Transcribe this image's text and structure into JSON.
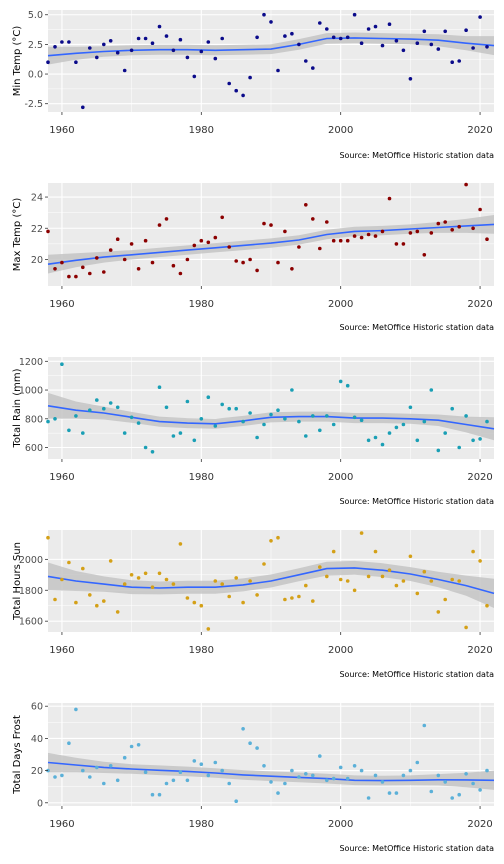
{
  "source_caption": "Source: MetOffice Historic station data",
  "colors": {
    "panel_bg": "#ebebeb",
    "grid": "#ffffff",
    "trend_line": "#3366ff",
    "ribbon": "#c4c4c4"
  },
  "chart_data": [
    {
      "type": "scatter",
      "ylabel": "Min Temp (°C)",
      "ylim": [
        -3.2,
        5.4
      ],
      "yticks": [
        -2.5,
        0.0,
        2.5,
        5.0
      ],
      "ytick_labels": [
        "-2.5",
        "0.0",
        "2.5",
        "5.0"
      ],
      "xlim": [
        1958,
        2022
      ],
      "xticks": [
        1960,
        1980,
        2000,
        2020
      ],
      "xtick_labels": [
        "1960",
        "1980",
        "2000",
        "2020"
      ],
      "point_color": "#0a0a8a",
      "x": [
        1958,
        1959,
        1960,
        1961,
        1962,
        1963,
        1964,
        1965,
        1966,
        1967,
        1968,
        1969,
        1970,
        1971,
        1972,
        1973,
        1974,
        1975,
        1976,
        1977,
        1978,
        1979,
        1980,
        1981,
        1982,
        1983,
        1984,
        1985,
        1986,
        1987,
        1988,
        1989,
        1990,
        1991,
        1992,
        1993,
        1994,
        1995,
        1996,
        1997,
        1998,
        1999,
        2000,
        2001,
        2002,
        2003,
        2004,
        2005,
        2006,
        2007,
        2008,
        2009,
        2010,
        2011,
        2012,
        2013,
        2014,
        2015,
        2016,
        2017,
        2018,
        2019,
        2020,
        2021
      ],
      "y": [
        1.0,
        2.3,
        2.7,
        2.7,
        1.0,
        -2.8,
        2.2,
        1.4,
        2.5,
        2.8,
        1.8,
        0.3,
        2.0,
        3.0,
        3.0,
        2.6,
        4.0,
        3.2,
        2.0,
        2.9,
        1.4,
        -0.2,
        1.9,
        2.7,
        1.3,
        3.0,
        -0.8,
        -1.4,
        -1.8,
        -0.3,
        3.1,
        5.0,
        4.4,
        0.3,
        3.2,
        3.4,
        2.5,
        1.1,
        0.5,
        4.3,
        3.8,
        3.1,
        3.0,
        3.1,
        5.0,
        2.6,
        3.8,
        4.0,
        2.4,
        4.2,
        2.8,
        2.0,
        -0.4,
        2.6,
        3.6,
        2.5,
        2.1,
        3.6,
        1.0,
        1.1,
        3.7,
        2.2,
        4.8,
        2.3
      ],
      "trend_x": [
        1958,
        1962,
        1966,
        1970,
        1974,
        1978,
        1982,
        1986,
        1990,
        1994,
        1998,
        2002,
        2006,
        2010,
        2014,
        2018,
        2022
      ],
      "trend_y": [
        1.55,
        1.75,
        1.9,
        2.0,
        2.05,
        2.05,
        2.0,
        2.05,
        2.1,
        2.5,
        3.0,
        3.05,
        3.0,
        2.95,
        2.85,
        2.6,
        2.4
      ],
      "band_halfwidth": [
        0.75,
        0.55,
        0.45,
        0.42,
        0.42,
        0.42,
        0.42,
        0.42,
        0.42,
        0.45,
        0.45,
        0.45,
        0.45,
        0.45,
        0.5,
        0.6,
        0.8
      ]
    },
    {
      "type": "scatter",
      "ylabel": "Max Temp (°C)",
      "ylim": [
        18.3,
        24.9
      ],
      "yticks": [
        20,
        22,
        24
      ],
      "ytick_labels": [
        "20",
        "22",
        "24"
      ],
      "xlim": [
        1958,
        2022
      ],
      "xticks": [
        1960,
        1980,
        2000,
        2020
      ],
      "xtick_labels": [
        "1960",
        "1980",
        "2000",
        "2020"
      ],
      "point_color": "#8b0000",
      "x": [
        1958,
        1959,
        1960,
        1961,
        1962,
        1963,
        1964,
        1965,
        1966,
        1967,
        1968,
        1969,
        1970,
        1971,
        1972,
        1973,
        1974,
        1975,
        1976,
        1977,
        1978,
        1979,
        1980,
        1981,
        1982,
        1983,
        1984,
        1985,
        1986,
        1987,
        1988,
        1989,
        1990,
        1991,
        1992,
        1993,
        1994,
        1995,
        1996,
        1997,
        1998,
        1999,
        2000,
        2001,
        2002,
        2003,
        2004,
        2005,
        2006,
        2007,
        2008,
        2009,
        2010,
        2011,
        2012,
        2013,
        2014,
        2015,
        2016,
        2017,
        2018,
        2019,
        2020,
        2021
      ],
      "y": [
        21.8,
        19.4,
        19.8,
        18.9,
        18.9,
        19.5,
        19.1,
        20.1,
        19.2,
        20.6,
        21.3,
        20.0,
        21.0,
        19.4,
        21.2,
        19.8,
        22.2,
        22.6,
        19.6,
        19.1,
        20.0,
        20.9,
        21.2,
        21.1,
        21.4,
        22.7,
        20.8,
        19.9,
        19.8,
        20.0,
        19.3,
        22.3,
        22.2,
        19.8,
        21.8,
        19.4,
        20.8,
        23.5,
        22.6,
        20.7,
        22.4,
        21.2,
        21.2,
        21.2,
        21.5,
        21.4,
        21.6,
        21.5,
        21.8,
        23.9,
        21.0,
        21.0,
        21.7,
        21.8,
        20.3,
        21.7,
        22.3,
        22.4,
        21.9,
        22.1,
        24.8,
        22.0,
        23.2,
        21.3
      ],
      "trend_x": [
        1958,
        1962,
        1966,
        1970,
        1974,
        1978,
        1982,
        1986,
        1990,
        1994,
        1998,
        2002,
        2006,
        2010,
        2014,
        2018,
        2022
      ],
      "trend_y": [
        19.7,
        19.95,
        20.15,
        20.3,
        20.45,
        20.6,
        20.75,
        20.9,
        21.05,
        21.25,
        21.6,
        21.8,
        21.85,
        21.95,
        22.05,
        22.15,
        22.25
      ],
      "band_halfwidth": [
        0.6,
        0.45,
        0.35,
        0.3,
        0.3,
        0.3,
        0.3,
        0.3,
        0.3,
        0.3,
        0.3,
        0.3,
        0.3,
        0.3,
        0.35,
        0.45,
        0.6
      ]
    },
    {
      "type": "scatter",
      "ylabel": "Total Rain (mm)",
      "ylim": [
        520,
        1230
      ],
      "yticks": [
        600,
        800,
        1000,
        1200
      ],
      "ytick_labels": [
        "600",
        "800",
        "1000",
        "1200"
      ],
      "xlim": [
        1958,
        2022
      ],
      "xticks": [
        1960,
        1980,
        2000,
        2020
      ],
      "xtick_labels": [
        "1960",
        "1980",
        "2000",
        "2020"
      ],
      "point_color": "#1a9fb5",
      "x": [
        1958,
        1959,
        1960,
        1961,
        1962,
        1963,
        1964,
        1965,
        1966,
        1967,
        1968,
        1969,
        1970,
        1971,
        1972,
        1973,
        1974,
        1975,
        1976,
        1977,
        1978,
        1979,
        1980,
        1981,
        1982,
        1983,
        1984,
        1985,
        1986,
        1987,
        1988,
        1989,
        1990,
        1991,
        1992,
        1993,
        1994,
        1995,
        1996,
        1997,
        1998,
        1999,
        2000,
        2001,
        2002,
        2003,
        2004,
        2005,
        2006,
        2007,
        2008,
        2009,
        2010,
        2011,
        2012,
        2013,
        2014,
        2015,
        2016,
        2017,
        2018,
        2019,
        2020,
        2021
      ],
      "y": [
        780,
        800,
        1180,
        720,
        820,
        700,
        860,
        930,
        870,
        910,
        880,
        700,
        810,
        770,
        600,
        570,
        1020,
        880,
        680,
        700,
        920,
        650,
        800,
        950,
        750,
        900,
        870,
        870,
        780,
        840,
        670,
        760,
        830,
        860,
        800,
        1000,
        780,
        680,
        820,
        720,
        820,
        760,
        1060,
        1030,
        810,
        790,
        650,
        670,
        620,
        700,
        740,
        760,
        880,
        650,
        780,
        1000,
        580,
        700,
        870,
        600,
        820,
        650,
        660,
        780
      ],
      "trend_x": [
        1958,
        1962,
        1966,
        1970,
        1974,
        1978,
        1982,
        1986,
        1990,
        1994,
        1998,
        2002,
        2006,
        2010,
        2014,
        2018,
        2022
      ],
      "trend_y": [
        890,
        860,
        840,
        810,
        780,
        770,
        765,
        785,
        810,
        815,
        815,
        805,
        805,
        800,
        790,
        760,
        730
      ],
      "band_halfwidth": [
        90,
        60,
        45,
        38,
        35,
        35,
        35,
        35,
        35,
        35,
        35,
        35,
        35,
        35,
        40,
        55,
        80
      ]
    },
    {
      "type": "scatter",
      "ylabel": "Total Hours Sun",
      "ylim": [
        1530,
        2190
      ],
      "yticks": [
        1600,
        1800,
        2000
      ],
      "ytick_labels": [
        "1600",
        "1800",
        "2000"
      ],
      "xlim": [
        1958,
        2022
      ],
      "xticks": [
        1960,
        1980,
        2000,
        2020
      ],
      "xtick_labels": [
        "1960",
        "1980",
        "2000",
        "2020"
      ],
      "point_color": "#d4a017",
      "x": [
        1958,
        1959,
        1960,
        1961,
        1962,
        1963,
        1964,
        1965,
        1966,
        1967,
        1968,
        1969,
        1970,
        1971,
        1972,
        1973,
        1974,
        1975,
        1976,
        1977,
        1978,
        1979,
        1980,
        1981,
        1982,
        1983,
        1984,
        1985,
        1986,
        1987,
        1988,
        1989,
        1990,
        1991,
        1992,
        1993,
        1994,
        1995,
        1996,
        1997,
        1998,
        1999,
        2000,
        2001,
        2002,
        2003,
        2004,
        2005,
        2006,
        2007,
        2008,
        2009,
        2010,
        2011,
        2012,
        2013,
        2014,
        2015,
        2016,
        2017,
        2018,
        2019,
        2020,
        2021
      ],
      "y": [
        2140,
        1740,
        1870,
        1980,
        1720,
        1940,
        1770,
        1700,
        1730,
        1990,
        1660,
        1840,
        1900,
        1880,
        1910,
        1820,
        1910,
        1870,
        1840,
        2100,
        1750,
        1720,
        1700,
        1550,
        1860,
        1840,
        1760,
        1880,
        1720,
        1860,
        1770,
        1970,
        2120,
        2140,
        1740,
        1750,
        1760,
        1830,
        1730,
        1950,
        1890,
        2050,
        1870,
        1860,
        1800,
        2170,
        1890,
        2050,
        1890,
        1930,
        1830,
        1860,
        2020,
        1780,
        1920,
        1860,
        1660,
        1740,
        1870,
        1860,
        1560,
        2050,
        1990,
        1700
      ],
      "trend_x": [
        1958,
        1962,
        1966,
        1970,
        1974,
        1978,
        1982,
        1986,
        1990,
        1994,
        1998,
        2002,
        2006,
        2010,
        2014,
        2018,
        2022
      ],
      "trend_y": [
        1890,
        1860,
        1840,
        1820,
        1815,
        1820,
        1820,
        1835,
        1860,
        1900,
        1940,
        1945,
        1930,
        1905,
        1870,
        1830,
        1780
      ],
      "band_halfwidth": [
        90,
        65,
        50,
        45,
        42,
        42,
        42,
        42,
        42,
        42,
        45,
        45,
        45,
        45,
        50,
        65,
        95
      ]
    },
    {
      "type": "scatter",
      "ylabel": "Total Days Frost",
      "ylim": [
        -2,
        62
      ],
      "yticks": [
        0,
        20,
        40,
        60
      ],
      "ytick_labels": [
        "0",
        "20",
        "40",
        "60"
      ],
      "xlim": [
        1958,
        2022
      ],
      "xticks": [
        1960,
        1980,
        2000,
        2020
      ],
      "xtick_labels": [
        "1960",
        "1980",
        "2000",
        "2020"
      ],
      "point_color": "#5bb0d8",
      "x": [
        1958,
        1959,
        1960,
        1961,
        1962,
        1963,
        1964,
        1965,
        1966,
        1967,
        1968,
        1969,
        1970,
        1971,
        1972,
        1973,
        1974,
        1975,
        1976,
        1977,
        1978,
        1979,
        1980,
        1981,
        1982,
        1983,
        1984,
        1985,
        1986,
        1987,
        1988,
        1989,
        1990,
        1991,
        1992,
        1993,
        1994,
        1995,
        1996,
        1997,
        1998,
        1999,
        2000,
        2001,
        2002,
        2003,
        2004,
        2005,
        2006,
        2007,
        2008,
        2009,
        2010,
        2011,
        2012,
        2013,
        2014,
        2015,
        2016,
        2017,
        2018,
        2019,
        2020,
        2021
      ],
      "y": [
        20,
        16,
        17,
        37,
        58,
        20,
        16,
        22,
        12,
        23,
        14,
        28,
        35,
        36,
        19,
        5,
        5,
        12,
        14,
        19,
        14,
        26,
        24,
        17,
        25,
        20,
        12,
        1,
        46,
        37,
        34,
        23,
        13,
        6,
        12,
        20,
        16,
        18,
        17,
        29,
        14,
        15,
        22,
        15,
        23,
        20,
        3,
        17,
        13,
        6,
        6,
        17,
        20,
        25,
        48,
        7,
        17,
        13,
        3,
        5,
        18,
        12,
        8,
        20
      ],
      "trend_x": [
        1958,
        1962,
        1966,
        1970,
        1974,
        1978,
        1982,
        1986,
        1990,
        1994,
        1998,
        2002,
        2006,
        2010,
        2014,
        2018,
        2022
      ],
      "trend_y": [
        25,
        23.5,
        22,
        21,
        20.2,
        19.5,
        18.5,
        17.3,
        16.5,
        15.8,
        15,
        14,
        13.8,
        14,
        14.3,
        14.2,
        14
      ],
      "band_halfwidth": [
        6,
        4.5,
        3.5,
        3,
        3,
        3,
        3,
        3,
        3,
        3,
        3,
        3,
        3,
        3,
        3.5,
        4.5,
        6
      ]
    }
  ]
}
